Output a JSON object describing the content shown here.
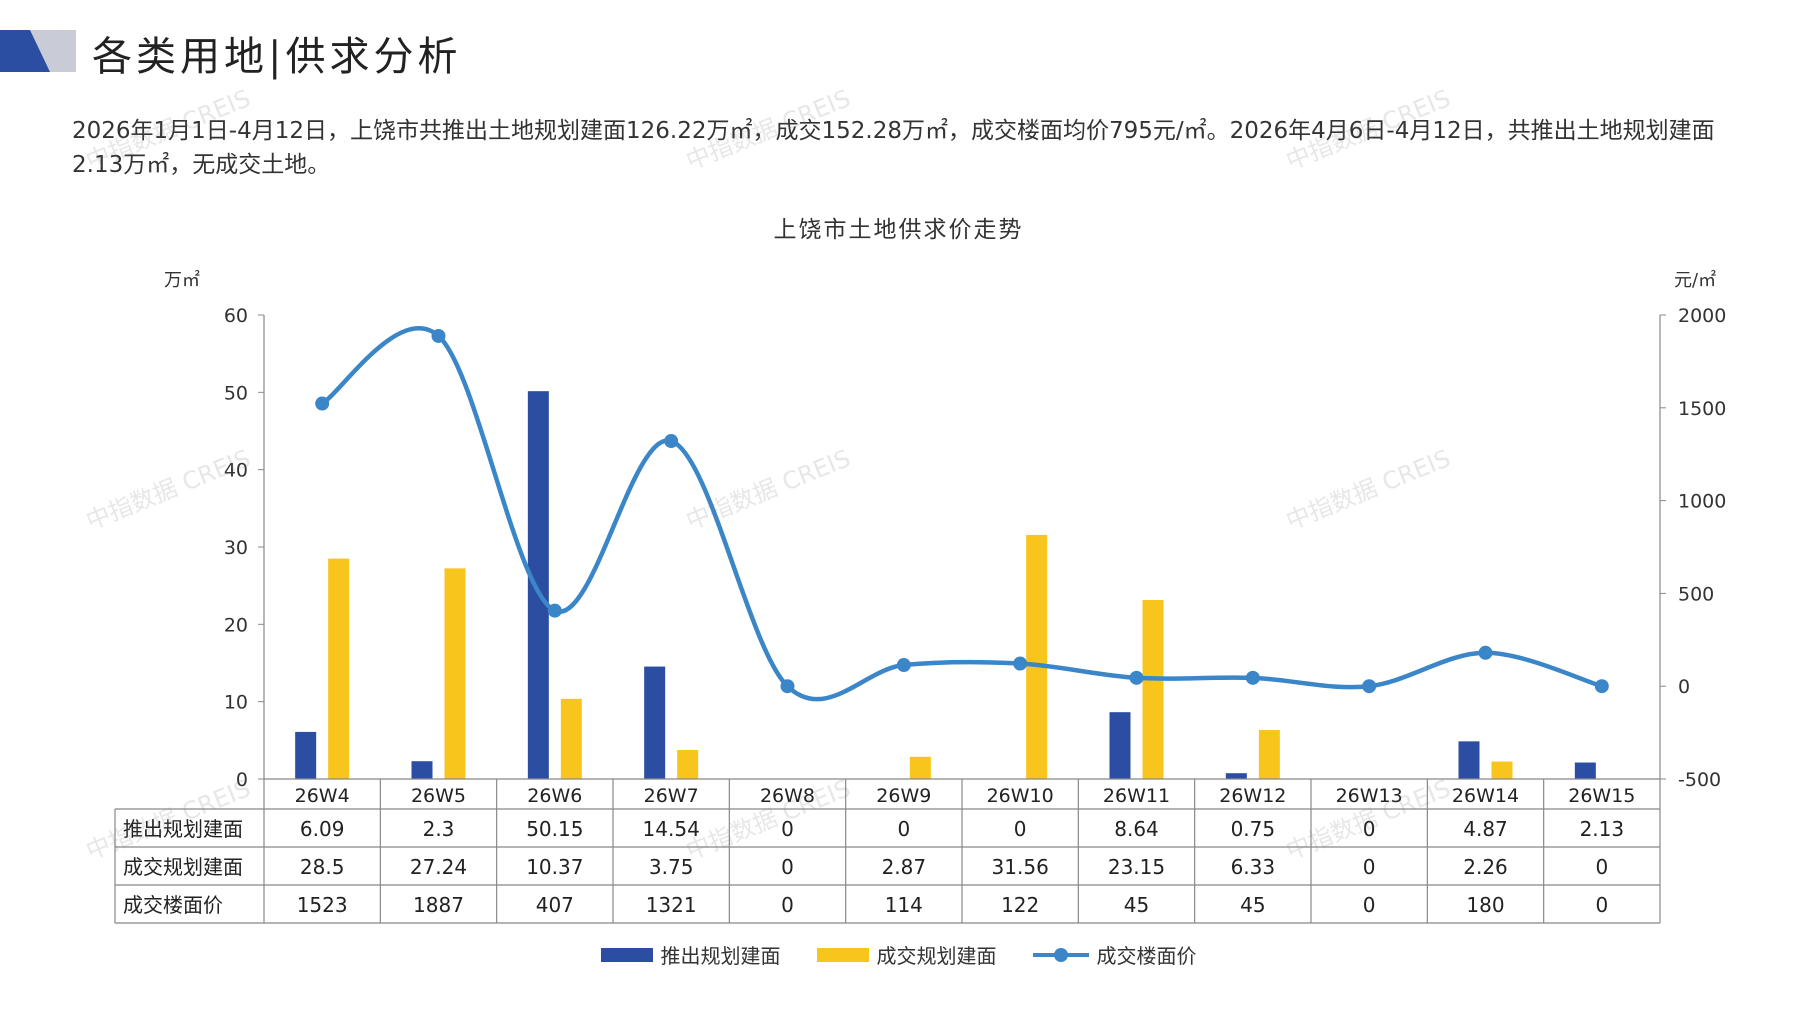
{
  "header": {
    "title": "各类用地|供求分析"
  },
  "summary": "2026年1月1日-4月12日，上饶市共推出土地规划建面126.22万㎡，成交152.28万㎡，成交楼面均价795元/㎡。2026年4月6日-4月12日，共推出土地规划建面2.13万㎡，无成交土地。",
  "watermark_text": "中指数据 CREIS",
  "colors": {
    "supply": "#2b4ea2",
    "deal": "#f8c51c",
    "price": "#3b86c8",
    "logo_dark": "#2b4ea2",
    "logo_light": "#c9ccd6"
  },
  "chart_data": {
    "type": "bar",
    "title": "上饶市土地供求价走势",
    "y_left_unit": "万㎡",
    "y_right_unit": "元/㎡",
    "ylim_left": [
      0,
      60
    ],
    "yticks_left": [
      0,
      10,
      20,
      30,
      40,
      50,
      60
    ],
    "ylim_right": [
      -500,
      2000
    ],
    "yticks_right": [
      -500,
      0,
      500,
      1000,
      1500,
      2000
    ],
    "categories": [
      "26W4",
      "26W5",
      "26W6",
      "26W7",
      "26W8",
      "26W9",
      "26W10",
      "26W11",
      "26W12",
      "26W13",
      "26W14",
      "26W15"
    ],
    "series": [
      {
        "name": "推出规划建面",
        "kind": "bar",
        "axis": "left",
        "values": [
          6.09,
          2.3,
          50.15,
          14.54,
          0,
          0,
          0,
          8.64,
          0.75,
          0,
          4.87,
          2.13
        ]
      },
      {
        "name": "成交规划建面",
        "kind": "bar",
        "axis": "left",
        "values": [
          28.5,
          27.24,
          10.37,
          3.75,
          0,
          2.87,
          31.56,
          23.15,
          6.33,
          0,
          2.26,
          0
        ]
      },
      {
        "name": "成交楼面价",
        "kind": "line",
        "axis": "right",
        "values": [
          1523,
          1887,
          407,
          1321,
          0,
          114,
          122,
          45,
          45,
          0,
          180,
          0
        ]
      }
    ],
    "table_rows": [
      [
        "6.09",
        "2.3",
        "50.15",
        "14.54",
        "0",
        "0",
        "0",
        "8.64",
        "0.75",
        "0",
        "4.87",
        "2.13"
      ],
      [
        "28.5",
        "27.24",
        "10.37",
        "3.75",
        "0",
        "2.87",
        "31.56",
        "23.15",
        "6.33",
        "0",
        "2.26",
        "0"
      ],
      [
        "1523",
        "1887",
        "407",
        "1321",
        "0",
        "114",
        "122",
        "45",
        "45",
        "0",
        "180",
        "0"
      ]
    ],
    "legend": [
      "推出规划建面",
      "成交规划建面",
      "成交楼面价"
    ],
    "legend_position": "bottom"
  }
}
